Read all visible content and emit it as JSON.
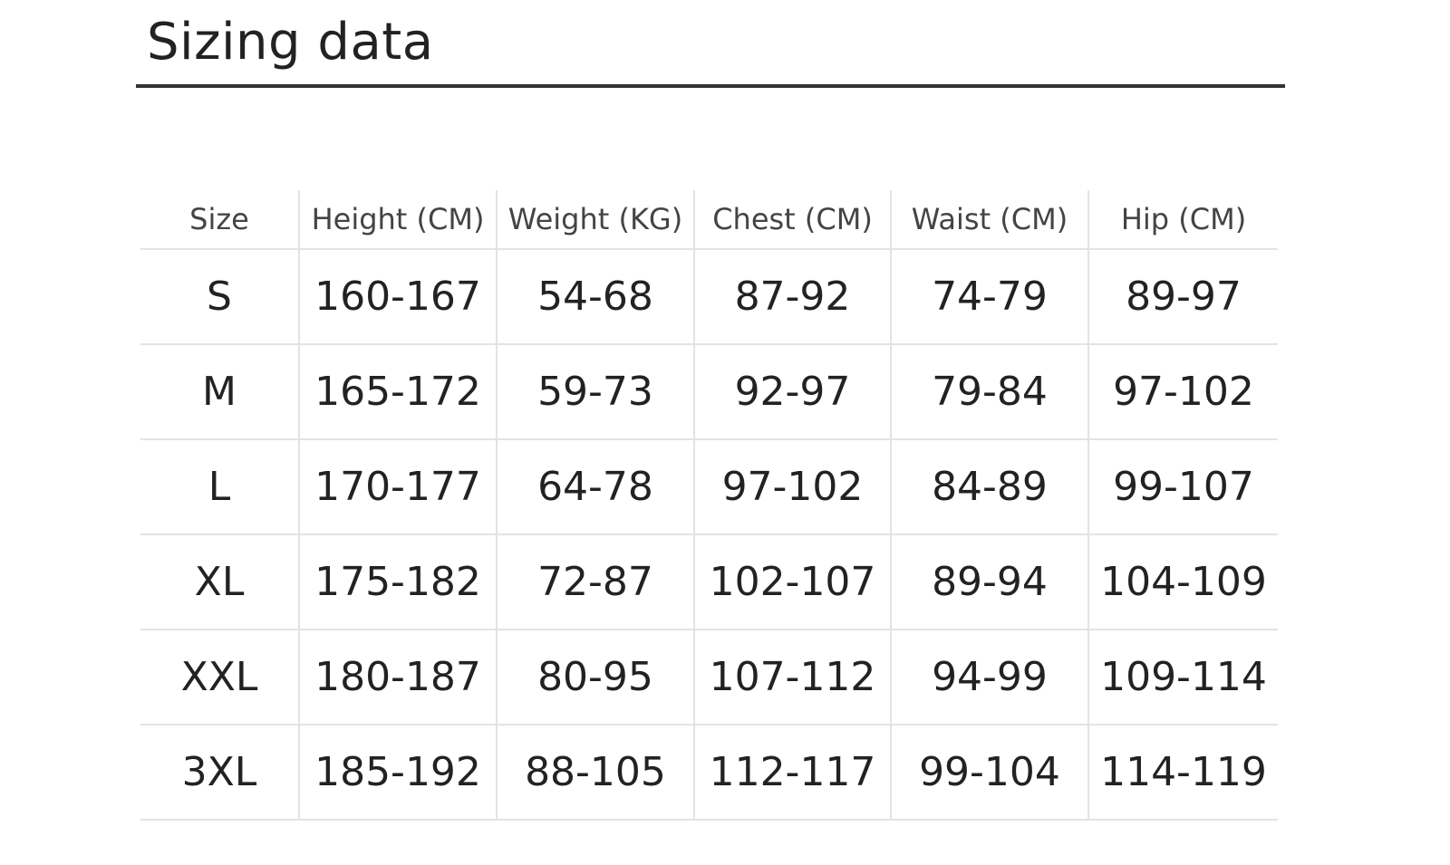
{
  "header": {
    "title": "Sizing data"
  },
  "table": {
    "columns": [
      "Size",
      "Height (CM)",
      "Weight (KG)",
      "Chest (CM)",
      "Waist (CM)",
      "Hip (CM)"
    ],
    "rows": [
      [
        "S",
        "160-167",
        "54-68",
        "87-92",
        "74-79",
        "89-97"
      ],
      [
        "M",
        "165-172",
        "59-73",
        "92-97",
        "79-84",
        "97-102"
      ],
      [
        "L",
        "170-177",
        "64-78",
        "97-102",
        "84-89",
        "99-107"
      ],
      [
        "XL",
        "175-182",
        "72-87",
        "102-107",
        "89-94",
        "104-109"
      ],
      [
        "XXL",
        "180-187",
        "80-95",
        "107-112",
        "94-99",
        "109-114"
      ],
      [
        "3XL",
        "185-192",
        "88-105",
        "112-117",
        "99-104",
        "114-119"
      ]
    ]
  }
}
